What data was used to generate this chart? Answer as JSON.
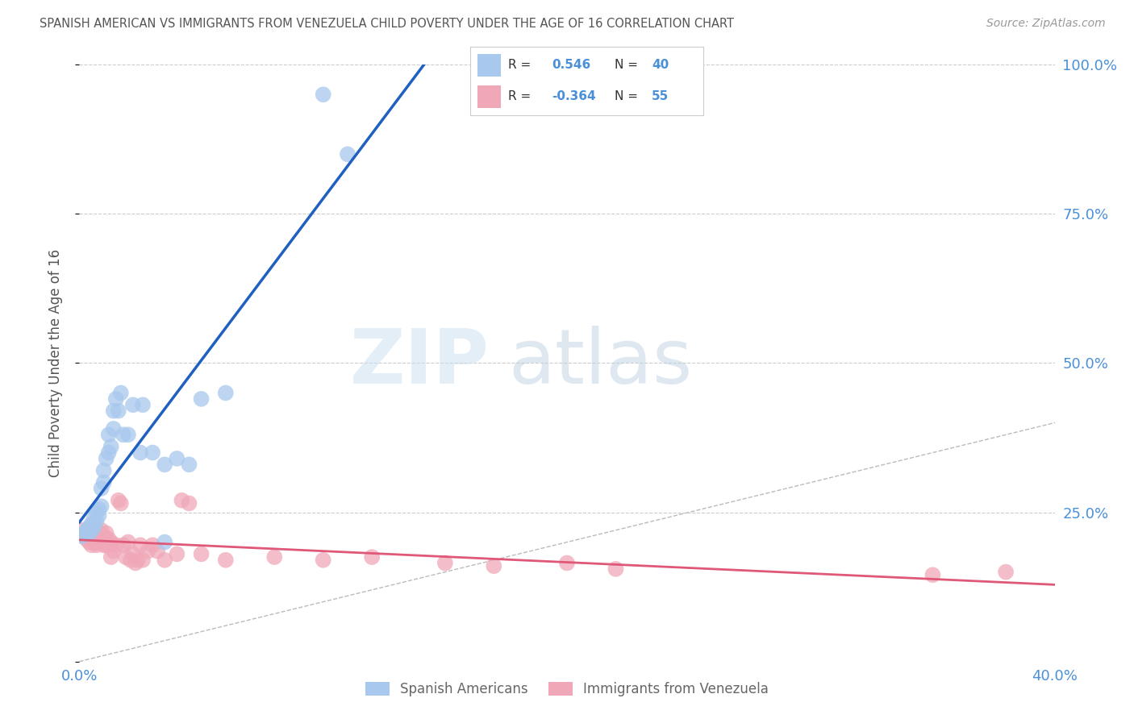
{
  "title": "SPANISH AMERICAN VS IMMIGRANTS FROM VENEZUELA CHILD POVERTY UNDER THE AGE OF 16 CORRELATION CHART",
  "source": "Source: ZipAtlas.com",
  "ylabel": "Child Poverty Under the Age of 16",
  "legend_label1": "Spanish Americans",
  "legend_label2": "Immigrants from Venezuela",
  "r1": 0.546,
  "n1": 40,
  "r2": -0.364,
  "n2": 55,
  "blue_color": "#a8c8ed",
  "pink_color": "#f0a8b8",
  "blue_line_color": "#2060c0",
  "pink_line_color": "#e05878",
  "title_color": "#555555",
  "axis_label_color": "#4a90d9",
  "source_color": "#999999",
  "bg_color": "#ffffff",
  "grid_color": "#cccccc",
  "watermark_zip_color": "#d8eaf8",
  "watermark_atlas_color": "#c8d8e8",
  "blue_scatter": [
    [
      0.001,
      0.21
    ],
    [
      0.002,
      0.215
    ],
    [
      0.003,
      0.22
    ],
    [
      0.004,
      0.215
    ],
    [
      0.004,
      0.225
    ],
    [
      0.005,
      0.22
    ],
    [
      0.005,
      0.23
    ],
    [
      0.006,
      0.225
    ],
    [
      0.006,
      0.24
    ],
    [
      0.007,
      0.235
    ],
    [
      0.007,
      0.25
    ],
    [
      0.008,
      0.245
    ],
    [
      0.008,
      0.255
    ],
    [
      0.009,
      0.26
    ],
    [
      0.009,
      0.29
    ],
    [
      0.01,
      0.3
    ],
    [
      0.01,
      0.32
    ],
    [
      0.011,
      0.34
    ],
    [
      0.012,
      0.35
    ],
    [
      0.012,
      0.38
    ],
    [
      0.013,
      0.36
    ],
    [
      0.014,
      0.39
    ],
    [
      0.014,
      0.42
    ],
    [
      0.015,
      0.44
    ],
    [
      0.016,
      0.42
    ],
    [
      0.017,
      0.45
    ],
    [
      0.018,
      0.38
    ],
    [
      0.02,
      0.38
    ],
    [
      0.022,
      0.43
    ],
    [
      0.025,
      0.35
    ],
    [
      0.026,
      0.43
    ],
    [
      0.03,
      0.35
    ],
    [
      0.035,
      0.33
    ],
    [
      0.04,
      0.34
    ],
    [
      0.045,
      0.33
    ],
    [
      0.05,
      0.44
    ],
    [
      0.06,
      0.45
    ],
    [
      0.1,
      0.95
    ],
    [
      0.11,
      0.85
    ],
    [
      0.035,
      0.2
    ]
  ],
  "pink_scatter": [
    [
      0.001,
      0.22
    ],
    [
      0.002,
      0.21
    ],
    [
      0.003,
      0.205
    ],
    [
      0.003,
      0.215
    ],
    [
      0.004,
      0.2
    ],
    [
      0.004,
      0.215
    ],
    [
      0.005,
      0.22
    ],
    [
      0.005,
      0.195
    ],
    [
      0.006,
      0.21
    ],
    [
      0.006,
      0.2
    ],
    [
      0.007,
      0.195
    ],
    [
      0.007,
      0.215
    ],
    [
      0.008,
      0.2
    ],
    [
      0.008,
      0.215
    ],
    [
      0.009,
      0.205
    ],
    [
      0.009,
      0.22
    ],
    [
      0.01,
      0.21
    ],
    [
      0.01,
      0.195
    ],
    [
      0.011,
      0.195
    ],
    [
      0.011,
      0.215
    ],
    [
      0.012,
      0.205
    ],
    [
      0.012,
      0.195
    ],
    [
      0.013,
      0.2
    ],
    [
      0.013,
      0.175
    ],
    [
      0.014,
      0.185
    ],
    [
      0.015,
      0.195
    ],
    [
      0.016,
      0.27
    ],
    [
      0.017,
      0.265
    ],
    [
      0.018,
      0.195
    ],
    [
      0.019,
      0.175
    ],
    [
      0.02,
      0.2
    ],
    [
      0.021,
      0.17
    ],
    [
      0.022,
      0.18
    ],
    [
      0.023,
      0.165
    ],
    [
      0.024,
      0.17
    ],
    [
      0.025,
      0.195
    ],
    [
      0.026,
      0.17
    ],
    [
      0.028,
      0.185
    ],
    [
      0.03,
      0.195
    ],
    [
      0.032,
      0.185
    ],
    [
      0.035,
      0.17
    ],
    [
      0.04,
      0.18
    ],
    [
      0.042,
      0.27
    ],
    [
      0.045,
      0.265
    ],
    [
      0.05,
      0.18
    ],
    [
      0.06,
      0.17
    ],
    [
      0.08,
      0.175
    ],
    [
      0.1,
      0.17
    ],
    [
      0.12,
      0.175
    ],
    [
      0.15,
      0.165
    ],
    [
      0.17,
      0.16
    ],
    [
      0.2,
      0.165
    ],
    [
      0.22,
      0.155
    ],
    [
      0.35,
      0.145
    ],
    [
      0.38,
      0.15
    ]
  ],
  "xlim": [
    0.0,
    0.4
  ],
  "ylim": [
    0.0,
    1.0
  ],
  "xticks": [
    0.0,
    0.1,
    0.2,
    0.3,
    0.4
  ],
  "xtick_labels": [
    "0.0%",
    "",
    "",
    "",
    "40.0%"
  ],
  "yticks": [
    0.0,
    0.25,
    0.5,
    0.75,
    1.0
  ],
  "ytick_labels_right": [
    "",
    "25.0%",
    "50.0%",
    "75.0%",
    "100.0%"
  ]
}
